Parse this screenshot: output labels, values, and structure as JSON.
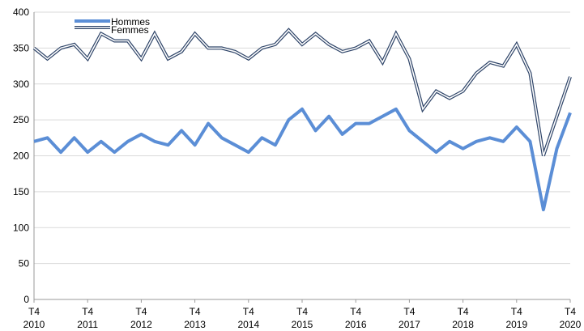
{
  "chart_data": {
    "type": "line",
    "ylim": [
      0,
      400
    ],
    "yticks": [
      0,
      50,
      100,
      150,
      200,
      250,
      300,
      350,
      400
    ],
    "x_tick_labels": [
      {
        "q": "T4",
        "year": "2010"
      },
      {
        "q": "T4",
        "year": "2011"
      },
      {
        "q": "T4",
        "year": "2012"
      },
      {
        "q": "T4",
        "year": "2013"
      },
      {
        "q": "T4",
        "year": "2014"
      },
      {
        "q": "T4",
        "year": "2015"
      },
      {
        "q": "T4",
        "year": "2016"
      },
      {
        "q": "T4",
        "year": "2017"
      },
      {
        "q": "T4",
        "year": "2018"
      },
      {
        "q": "T4",
        "year": "2019"
      },
      {
        "q": "T4",
        "year": "2020"
      }
    ],
    "legend_position": "top-left",
    "grid": "horizontal",
    "series": [
      {
        "name": "Hommes",
        "color": "#5b8ed6",
        "style": "thick",
        "values": [
          220,
          225,
          205,
          225,
          205,
          220,
          205,
          220,
          230,
          220,
          215,
          235,
          215,
          245,
          225,
          215,
          205,
          225,
          215,
          250,
          265,
          235,
          255,
          230,
          245,
          245,
          255,
          265,
          235,
          220,
          205,
          220,
          210,
          220,
          225,
          220,
          240,
          220,
          125,
          210,
          260
        ]
      },
      {
        "name": "Femmes",
        "color": "#2e4468",
        "style": "double",
        "values": [
          350,
          335,
          350,
          355,
          335,
          370,
          360,
          360,
          335,
          370,
          335,
          345,
          370,
          350,
          350,
          345,
          335,
          350,
          355,
          375,
          355,
          370,
          355,
          345,
          350,
          360,
          330,
          370,
          335,
          265,
          290,
          280,
          290,
          315,
          330,
          325,
          355,
          315,
          200,
          255,
          310
        ]
      }
    ]
  }
}
